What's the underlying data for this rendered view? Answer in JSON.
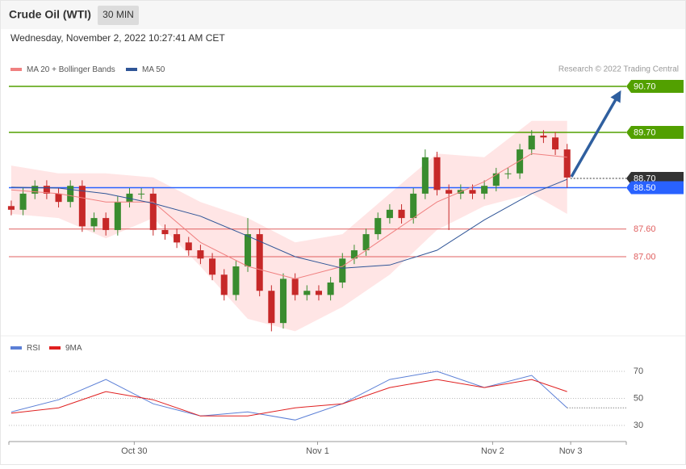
{
  "header": {
    "title": "Crude Oil (WTI)",
    "interval": "30 MIN",
    "timestamp": "Wednesday, November 2, 2022 10:27:41 AM CET",
    "credit": "Research © 2022 Trading Central"
  },
  "chart_data": [
    {
      "type": "candlestick",
      "xlim": [
        -0.2,
        52
      ],
      "ylim": [
        85.3,
        90.91
      ],
      "up_color": "#3a8c2f",
      "down_color": "#c62828",
      "open": [
        88.1,
        88.02,
        88.37,
        88.54,
        88.37,
        88.19,
        88.54,
        87.66,
        87.84,
        87.58,
        88.19,
        88.37,
        88.37,
        87.58,
        87.49,
        87.31,
        87.14,
        86.96,
        86.61,
        86.17,
        86.79,
        87.49,
        86.26,
        85.56,
        86.52,
        86.17,
        86.26,
        86.17,
        86.44,
        86.96,
        87.14,
        87.49,
        87.84,
        88.02,
        87.84,
        88.37,
        89.16,
        88.45,
        88.37,
        88.45,
        88.37,
        88.54,
        88.81,
        88.81,
        89.33,
        89.63,
        89.59,
        89.33
      ],
      "high": [
        88.22,
        88.49,
        88.66,
        88.66,
        88.49,
        88.66,
        88.66,
        87.96,
        87.96,
        88.31,
        88.49,
        88.49,
        88.49,
        87.7,
        87.61,
        87.43,
        87.26,
        87.08,
        86.73,
        86.91,
        87.84,
        87.61,
        86.38,
        86.64,
        86.64,
        86.38,
        86.38,
        86.56,
        87.08,
        87.26,
        87.61,
        87.96,
        88.14,
        88.14,
        88.49,
        89.33,
        89.28,
        88.57,
        88.57,
        88.57,
        88.66,
        88.93,
        88.93,
        89.45,
        89.75,
        89.75,
        89.71,
        89.45
      ],
      "low": [
        87.9,
        87.9,
        88.25,
        88.25,
        88.07,
        88.07,
        87.54,
        87.54,
        87.46,
        87.46,
        88.07,
        88.25,
        87.46,
        87.37,
        87.19,
        87.02,
        86.84,
        86.49,
        86.05,
        86.05,
        86.67,
        86.14,
        85.38,
        85.44,
        86.05,
        86.05,
        86.05,
        86.05,
        86.32,
        86.84,
        87.02,
        87.37,
        87.72,
        87.72,
        87.72,
        88.25,
        88.33,
        87.58,
        88.25,
        88.25,
        88.25,
        88.42,
        88.69,
        88.69,
        89.21,
        89.47,
        89.21,
        88.5
      ],
      "close": [
        88.02,
        88.37,
        88.54,
        88.37,
        88.19,
        88.54,
        87.66,
        87.84,
        87.58,
        88.19,
        88.37,
        88.37,
        87.58,
        87.49,
        87.31,
        87.14,
        86.96,
        86.61,
        86.17,
        86.79,
        87.49,
        86.26,
        85.56,
        86.52,
        86.17,
        86.26,
        86.17,
        86.44,
        86.96,
        87.14,
        87.49,
        87.84,
        88.02,
        87.84,
        88.37,
        89.16,
        88.45,
        88.37,
        88.45,
        88.37,
        88.54,
        88.81,
        88.81,
        89.33,
        89.63,
        89.59,
        89.33,
        88.72
      ],
      "indicators": [
        {
          "name": "MA 20 + Bollinger Bands",
          "color": "#f08080",
          "band_color": "#ffdede",
          "x": [
            0,
            4,
            8,
            12,
            16,
            20,
            24,
            28,
            32,
            36,
            40,
            44,
            47
          ],
          "values": [
            88.45,
            88.37,
            88.19,
            88.19,
            87.31,
            86.79,
            86.52,
            86.79,
            87.49,
            88.19,
            88.63,
            89.24,
            89.16
          ],
          "upper": [
            88.98,
            88.81,
            88.81,
            88.72,
            88.19,
            87.84,
            87.31,
            87.49,
            88.37,
            89.24,
            89.16,
            89.95,
            89.95
          ],
          "lower": [
            87.93,
            87.84,
            87.4,
            87.84,
            86.79,
            85.65,
            85.38,
            85.91,
            86.61,
            87.58,
            88.1,
            88.37,
            87.93
          ]
        },
        {
          "name": "MA 50",
          "color": "#2f5597",
          "x": [
            0,
            4,
            8,
            12,
            16,
            20,
            24,
            28,
            32,
            36,
            40,
            44,
            47
          ],
          "values": [
            88.51,
            88.49,
            88.37,
            88.16,
            87.88,
            87.45,
            87.0,
            86.75,
            86.82,
            87.14,
            87.8,
            88.37,
            88.68
          ]
        }
      ],
      "levels": [
        {
          "value": 90.7,
          "label": "90.70",
          "color": "#52a000",
          "tag": true,
          "dashed": false
        },
        {
          "value": 89.7,
          "label": "89.70",
          "color": "#52a000",
          "tag": true,
          "dashed": false
        },
        {
          "value": 88.7,
          "label": "88.70",
          "color": "#333333",
          "tag": true,
          "dashed": true
        },
        {
          "value": 88.5,
          "label": "88.50",
          "color": "#2962ff",
          "tag": true,
          "dashed": false
        },
        {
          "value": 87.6,
          "label": "87.60",
          "color": "#e06060",
          "tag": false,
          "dashed": false
        },
        {
          "value": 87.0,
          "label": "87.00",
          "color": "#e06060",
          "tag": false,
          "dashed": false
        }
      ]
    },
    {
      "type": "line",
      "xlim": [
        -0.2,
        52
      ],
      "ylim": [
        20,
        80
      ],
      "yticks": [
        30,
        50,
        70
      ],
      "xticks": [
        {
          "value": 10.4,
          "label": "Oct 30"
        },
        {
          "value": 25.9,
          "label": "Nov 1"
        },
        {
          "value": 40.7,
          "label": "Nov 2"
        },
        {
          "value": 47.3,
          "label": "Nov 3"
        }
      ],
      "x": [
        0,
        4,
        8,
        12,
        16,
        20,
        24,
        28,
        32,
        36,
        40,
        44,
        47
      ],
      "series": [
        {
          "name": "RSI",
          "color": "#5b7fd6",
          "values": [
            40,
            49,
            64,
            46,
            37,
            40,
            34,
            46,
            64,
            70,
            58,
            67,
            43
          ]
        },
        {
          "name": "9MA",
          "color": "#e02020",
          "values": [
            39,
            43,
            55,
            49,
            37,
            37,
            43,
            46,
            58,
            64,
            58,
            64,
            55
          ]
        }
      ]
    }
  ]
}
